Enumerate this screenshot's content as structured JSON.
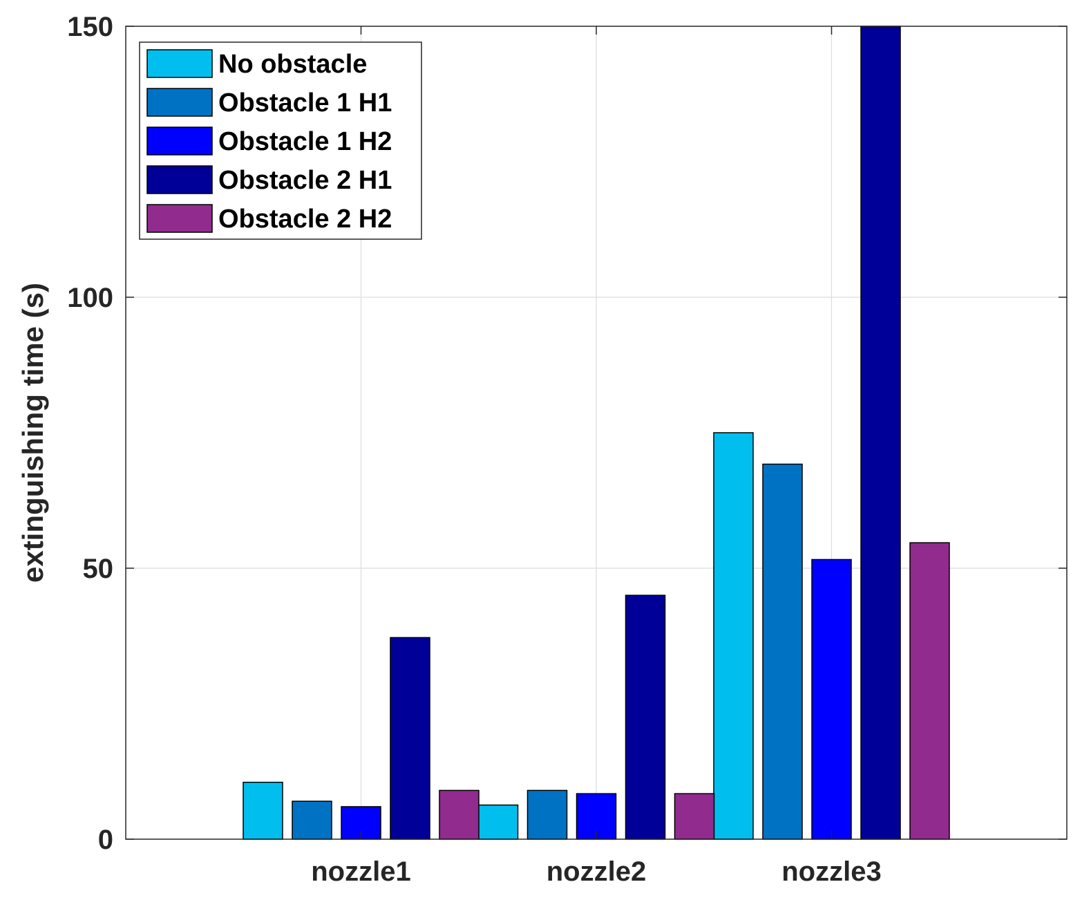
{
  "chart_data": {
    "type": "bar",
    "title": "",
    "xlabel": "",
    "ylabel": "extinguishing time (s)",
    "categories": [
      "nozzle1",
      "nozzle2",
      "nozzle3"
    ],
    "ylim": [
      0,
      150
    ],
    "yticks": [
      0,
      50,
      100,
      150
    ],
    "grid": true,
    "legend_position": "top-left",
    "series": [
      {
        "name": "No obstacle",
        "color": "#00BFEF",
        "values": [
          10.5,
          6.3,
          75
        ]
      },
      {
        "name": "Obstacle 1 H1",
        "color": "#0072C4",
        "values": [
          7,
          9,
          69.2
        ]
      },
      {
        "name": "Obstacle 1 H2",
        "color": "#0000FF",
        "values": [
          6,
          8.4,
          51.6
        ]
      },
      {
        "name": "Obstacle 2 H1",
        "color": "#000099",
        "values": [
          37.2,
          45,
          150
        ]
      },
      {
        "name": "Obstacle 2 H2",
        "color": "#912B8E",
        "values": [
          9,
          8.4,
          54.7
        ]
      }
    ]
  }
}
